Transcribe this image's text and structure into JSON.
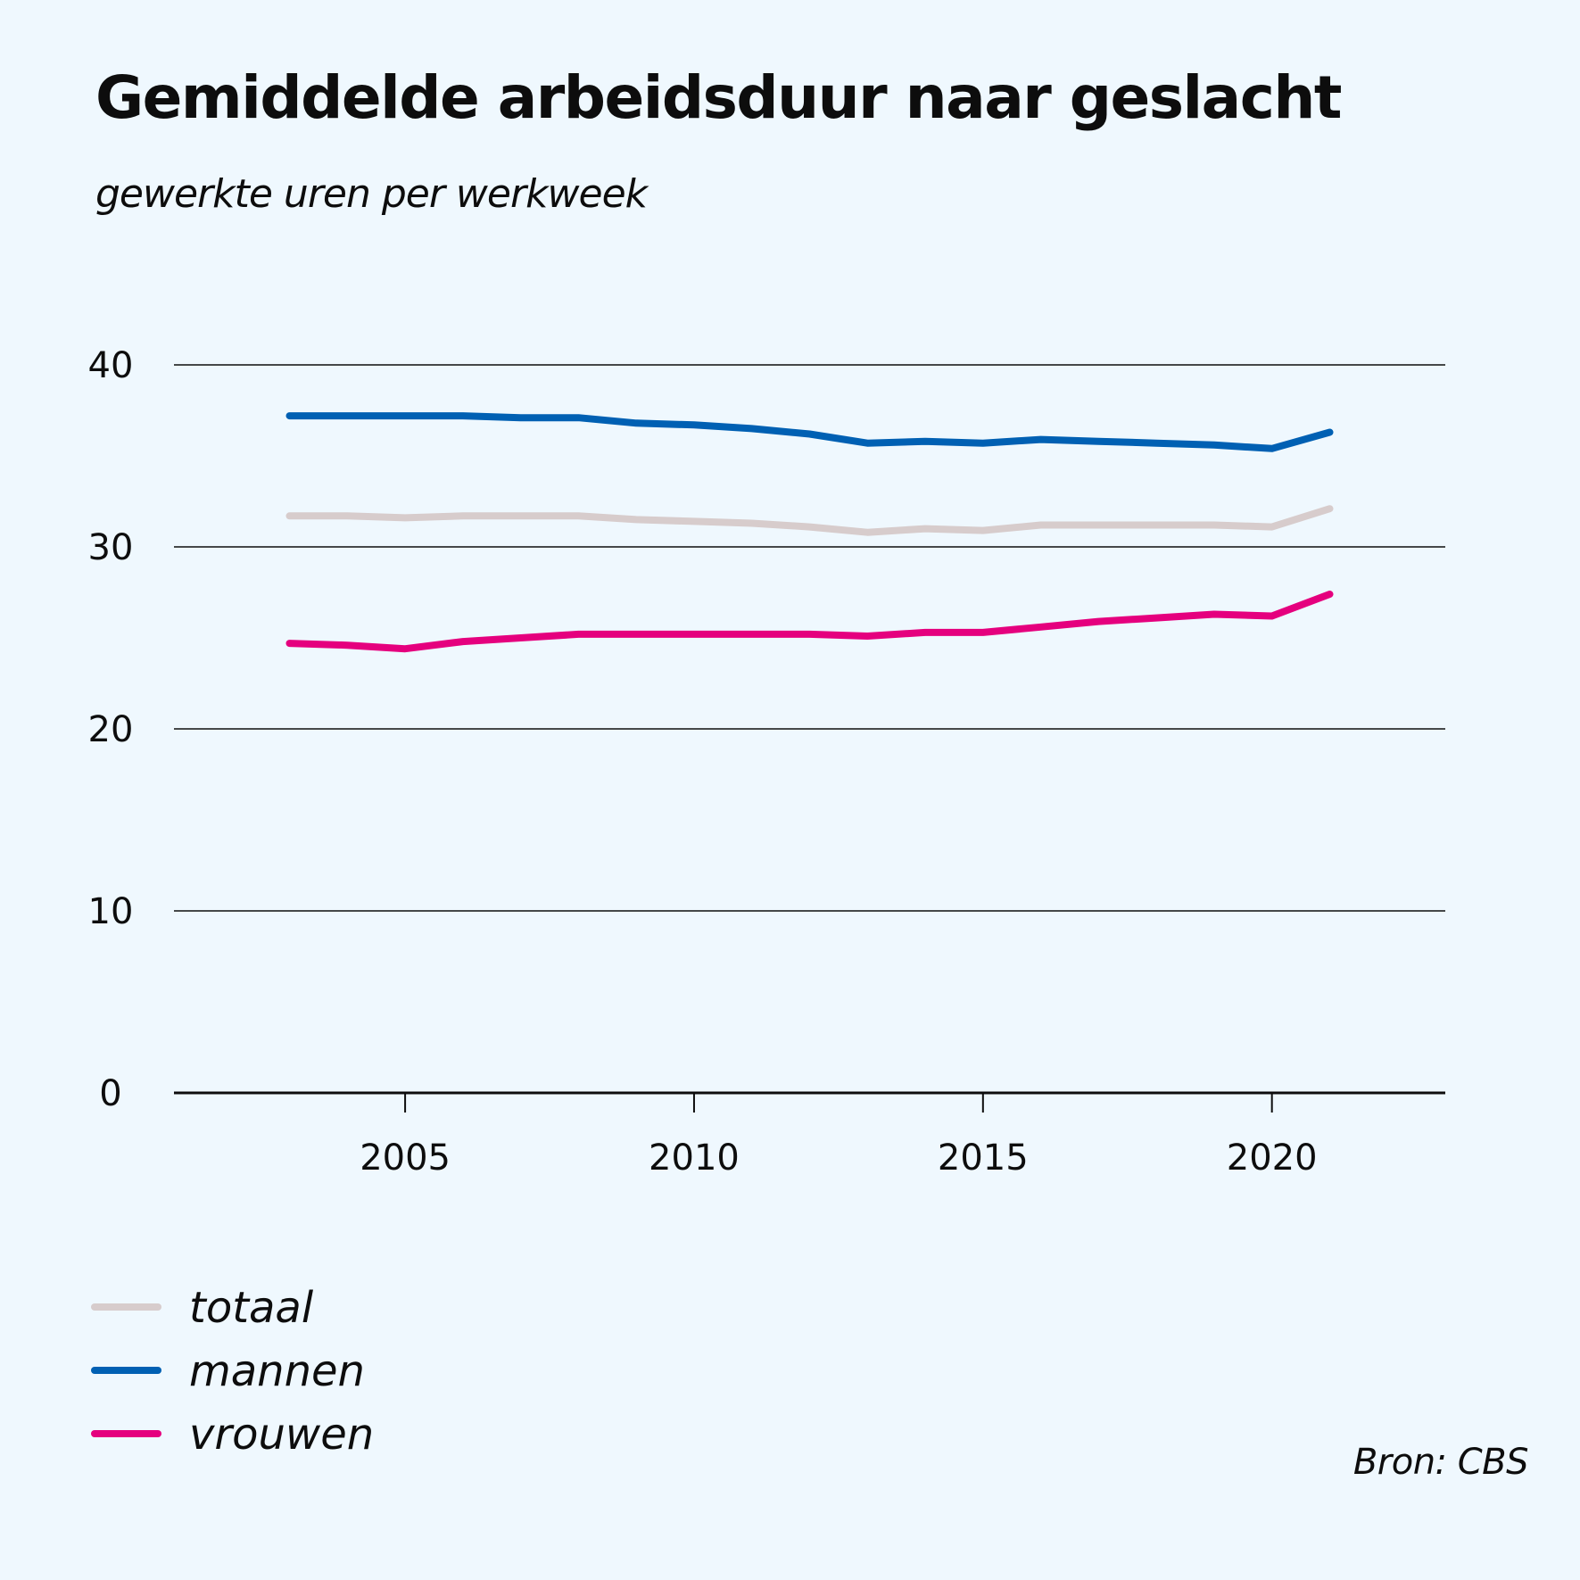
{
  "title": "Gemiddelde arbeidsduur naar geslacht",
  "subtitle": "gewerkte uren per werkweek",
  "source": "Bron: CBS",
  "chart_data": {
    "type": "line",
    "title": "Gemiddelde arbeidsduur naar geslacht",
    "subtitle": "gewerkte uren per werkweek",
    "xlabel": "",
    "ylabel": "",
    "xlim": [
      2001,
      2023
    ],
    "ylim": [
      0,
      40
    ],
    "xticks": [
      2005,
      2010,
      2015,
      2020
    ],
    "yticks": [
      0,
      10,
      20,
      30,
      40
    ],
    "grid": "horizontal",
    "legend_position": "bottom-left",
    "x": [
      2003,
      2004,
      2005,
      2006,
      2007,
      2008,
      2009,
      2010,
      2011,
      2012,
      2013,
      2014,
      2015,
      2016,
      2017,
      2018,
      2019,
      2020,
      2021
    ],
    "series": [
      {
        "name": "totaal",
        "color": "#d7cccc",
        "values": [
          31.7,
          31.7,
          31.6,
          31.7,
          31.7,
          31.7,
          31.5,
          31.4,
          31.3,
          31.1,
          30.8,
          31.0,
          30.9,
          31.2,
          31.2,
          31.2,
          31.2,
          31.1,
          32.1
        ]
      },
      {
        "name": "mannen",
        "color": "#0060b3",
        "values": [
          37.2,
          37.2,
          37.2,
          37.2,
          37.1,
          37.1,
          36.8,
          36.7,
          36.5,
          36.2,
          35.7,
          35.8,
          35.7,
          35.9,
          35.8,
          35.7,
          35.6,
          35.4,
          36.3
        ]
      },
      {
        "name": "vrouwen",
        "color": "#e5007e",
        "values": [
          24.7,
          24.6,
          24.4,
          24.8,
          25.0,
          25.2,
          25.2,
          25.2,
          25.2,
          25.2,
          25.1,
          25.3,
          25.3,
          25.6,
          25.9,
          26.1,
          26.3,
          26.2,
          27.4
        ]
      }
    ]
  }
}
